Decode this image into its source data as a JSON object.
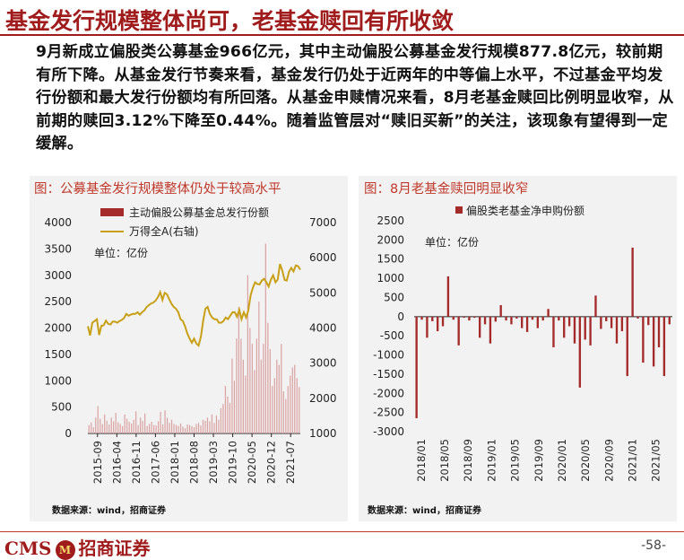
{
  "page": {
    "title": "基金发行规模整体尚可，老基金赎回有所收敛",
    "paragraph": "9月新成立偏股类公募基金966亿元，其中主动偏股公募基金发行规模877.8亿元，较前期有所下降。从基金发行节奏来看，基金发行仍处于近两年的中等偏上水平，不过基金平均发行份额和最大发行份额均有所回落。从基金申赎情况来看，8月老基金赎回比例明显收窄，从前期的赎回3.12%下降至0.44%。随着监管层对“赎旧买新”的关注，该现象有望得到一定缓解。",
    "footer_logo": "CMS",
    "footer_brand": "招商证券",
    "footer_badge": "M",
    "page_number": "-58-"
  },
  "colors": {
    "accent": "#a01c1c",
    "bar": "#a52a2a",
    "line": "#c8a016",
    "panel": "#f2f2f2"
  },
  "chart_data": [
    {
      "type": "bar+line",
      "title": "图：公募基金发行规模整体仍处于较高水平",
      "unit_note": "单位：亿份",
      "source": "数据来源：wind，招商证券",
      "grid": false,
      "legend": [
        "主动偏股公募基金总发行份额",
        "万得全A(右轴)"
      ],
      "x_ticks": [
        "2015-09",
        "2016-04",
        "2016-11",
        "2017-06",
        "2018-01",
        "2018-08",
        "2019-03",
        "2019-10",
        "2020-05",
        "2020-12",
        "2021-07"
      ],
      "ylim_left": [
        0,
        4000
      ],
      "yticks_left": [
        "0",
        "500",
        "1000",
        "1500",
        "2000",
        "2500",
        "3000",
        "3500",
        "4000"
      ],
      "ylim_right": [
        1000,
        7000
      ],
      "yticks_right": [
        "1000",
        "2000",
        "3000",
        "4000",
        "5000",
        "6000",
        "7000"
      ],
      "bar_series": {
        "name": "主动偏股公募基金总发行份额",
        "values": [
          160,
          210,
          120,
          300,
          520,
          280,
          180,
          360,
          240,
          170,
          300,
          230,
          390,
          210,
          180,
          140,
          360,
          280,
          220,
          190,
          260,
          420,
          160,
          300,
          240,
          380,
          140,
          180,
          220,
          160,
          150,
          230,
          410,
          170,
          440,
          300,
          200,
          260,
          180,
          160,
          140,
          190,
          130,
          100,
          170,
          160,
          140,
          120,
          180,
          200,
          150,
          260,
          240,
          300,
          230,
          360,
          200,
          340,
          260,
          480,
          560,
          900,
          700,
          580,
          1420,
          1000,
          1800,
          2400,
          1800,
          1400,
          1100,
          3000,
          2000,
          1700,
          1200,
          1800,
          2500,
          1400,
          1700,
          3600,
          2100,
          1600,
          900,
          1050,
          1400,
          1300,
          1700,
          800,
          650,
          900,
          1100,
          1250,
          1300,
          1050,
          880
        ]
      },
      "line_series": {
        "name": "万得全A(右轴)",
        "values": [
          4050,
          3790,
          4150,
          4200,
          4250,
          3800,
          4060,
          4080,
          4210,
          4120,
          4100,
          4180,
          4180,
          4150,
          4200,
          4230,
          4280,
          4400,
          4350,
          4380,
          4400,
          4400,
          4450,
          4380,
          4450,
          4500,
          4600,
          4650,
          4700,
          4720,
          4780,
          4880,
          5020,
          4800,
          5000,
          4960,
          4820,
          4690,
          4600,
          4550,
          4450,
          4250,
          4200,
          4050,
          3850,
          3700,
          3580,
          3700,
          3560,
          3500,
          3750,
          4200,
          4550,
          4600,
          4400,
          4300,
          4250,
          4250,
          4150,
          4150,
          4200,
          4300,
          4250,
          4350,
          4450,
          4450,
          4320,
          4520,
          4250,
          4450,
          4300,
          4500,
          4920,
          5150,
          5300,
          5250,
          5240,
          5350,
          5400,
          5300,
          5180,
          5380,
          5500,
          5300,
          5380,
          5820,
          5640,
          5370,
          5350,
          5600,
          5710,
          5610,
          5780,
          5760,
          5660
        ]
      }
    },
    {
      "type": "bar",
      "title": "图：8月老基金赎回明显收窄",
      "unit_note": "单位：亿份",
      "source": "数据来源：wind，招商证券",
      "grid": false,
      "legend": [
        "偏股类老基金净申购份额"
      ],
      "x_ticks": [
        "2018/01",
        "2018/05",
        "2018/09",
        "2019/01",
        "2019/05",
        "2019/09",
        "2020/01",
        "2020/05",
        "2020/09",
        "2021/01",
        "2021/05"
      ],
      "ylim": [
        -3000,
        2500
      ],
      "yticks": [
        "-3000",
        "-2500",
        "-2000",
        "-1500",
        "-1000",
        "-500",
        "0",
        "500",
        "1000",
        "1500",
        "2000",
        "2500"
      ],
      "series": [
        {
          "name": "偏股类老基金净申购份额",
          "values": [
            -2650,
            -80,
            -550,
            -120,
            -380,
            -250,
            1050,
            -80,
            -750,
            -30,
            -100,
            -30,
            -550,
            -200,
            -700,
            -130,
            300,
            -100,
            -200,
            -50,
            -300,
            -400,
            -80,
            -300,
            -100,
            200,
            -800,
            -100,
            -550,
            -250,
            -700,
            -1850,
            -600,
            -750,
            550,
            -320,
            -120,
            -300,
            -700,
            -380,
            -1550,
            1800,
            -50,
            -1200,
            -220,
            -1300,
            -800,
            -1550,
            -200
          ]
        }
      ]
    }
  ]
}
